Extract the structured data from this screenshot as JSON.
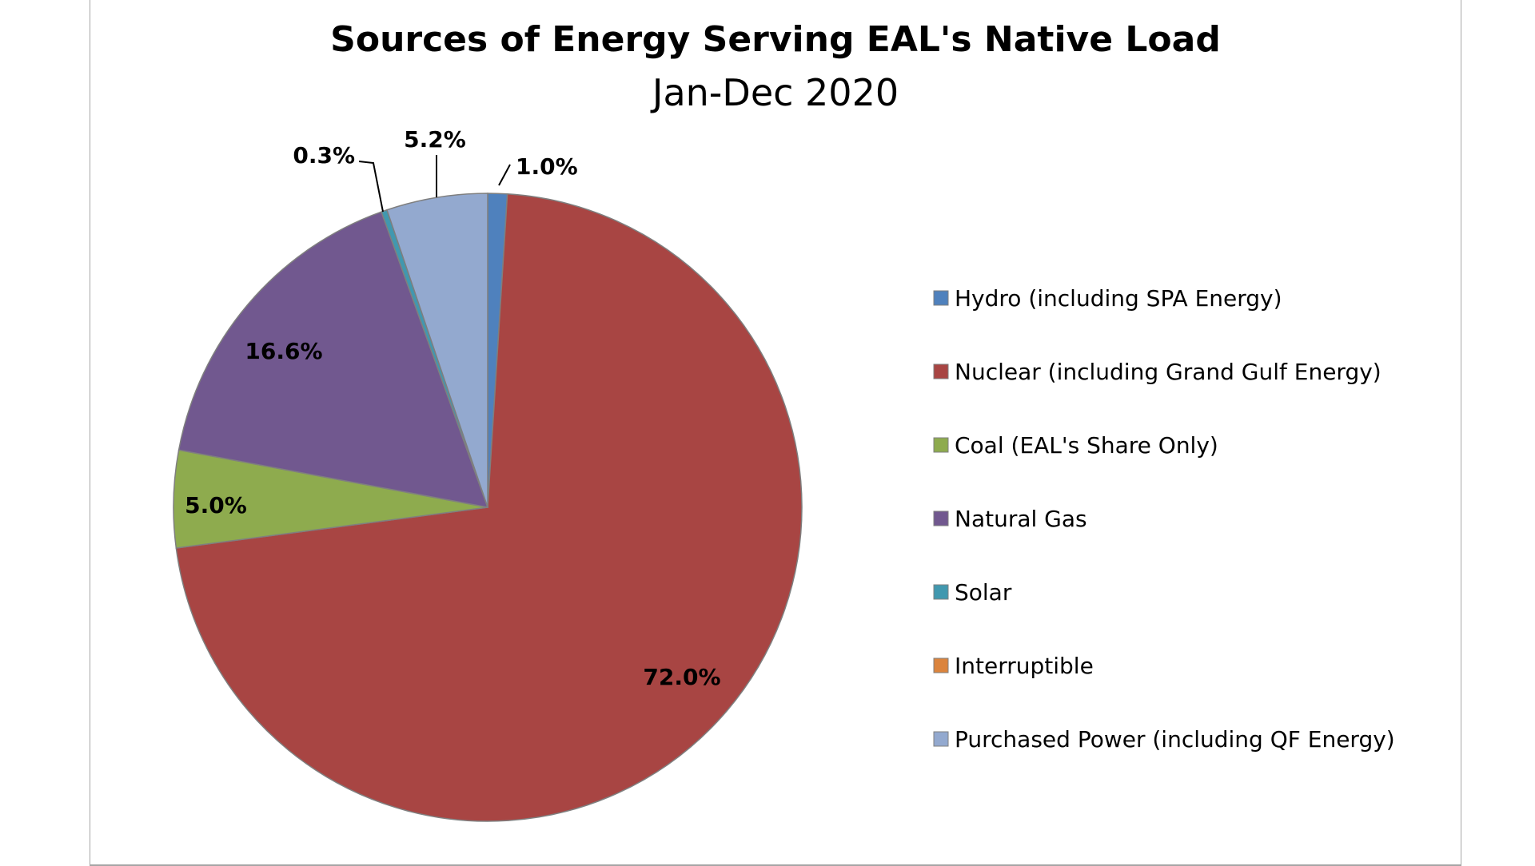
{
  "chart_data": {
    "type": "pie",
    "title": "Sources of Energy Serving EAL's Native Load",
    "subtitle": "Jan-Dec 2020",
    "legend_position": "right",
    "slices": [
      {
        "name": "Hydro (including SPA Energy)",
        "value": 1.0,
        "label": "1.0%",
        "color": "#4f81bd"
      },
      {
        "name": "Nuclear (including Grand Gulf Energy)",
        "value": 72.0,
        "label": "72.0%",
        "color": "#a84543"
      },
      {
        "name": "Coal (EAL's Share Only)",
        "value": 5.0,
        "label": "5.0%",
        "color": "#8eab4e"
      },
      {
        "name": "Natural Gas",
        "value": 16.6,
        "label": "16.6%",
        "color": "#71588f"
      },
      {
        "name": "Solar",
        "value": 0.3,
        "label": "0.3%",
        "color": "#4198af"
      },
      {
        "name": "Interruptible",
        "value": 0.0,
        "label": "",
        "color": "#db843d"
      },
      {
        "name": "Purchased Power (including QF Energy)",
        "value": 5.2,
        "label": "5.2%",
        "color": "#93a9cf"
      }
    ]
  }
}
